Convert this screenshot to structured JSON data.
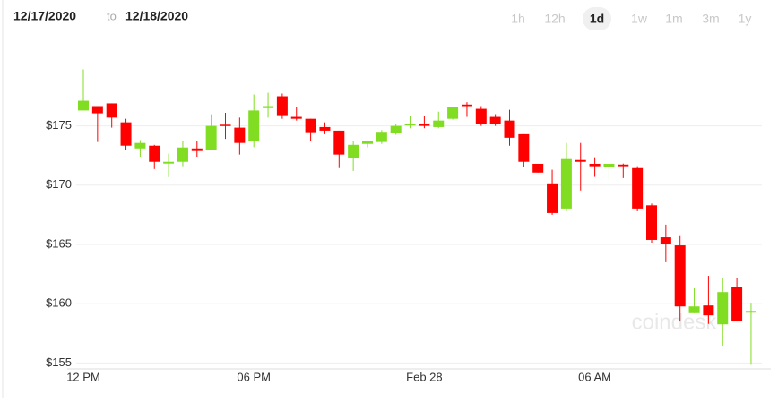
{
  "date_range": {
    "from": "12/17/2020",
    "separator": "to",
    "to": "12/18/2020"
  },
  "timeframes": [
    "1h",
    "12h",
    "1d",
    "1w",
    "1m",
    "3m",
    "1y"
  ],
  "selected_timeframe": 2,
  "watermark": "coindesk",
  "chart_data": {
    "type": "candlestick",
    "categories": [
      "12 PM",
      null,
      null,
      null,
      null,
      null,
      null,
      null,
      null,
      null,
      null,
      null,
      "06 PM",
      null,
      null,
      null,
      null,
      null,
      null,
      null,
      null,
      null,
      null,
      null,
      "Feb 28",
      null,
      null,
      null,
      null,
      null,
      null,
      null,
      null,
      null,
      null,
      null,
      "06 AM",
      null,
      null,
      null,
      null,
      null,
      null,
      null,
      null,
      null,
      null,
      null
    ],
    "open": [
      176.3,
      176.67,
      176.9,
      175.3,
      173.1,
      173.33,
      171.82,
      171.97,
      173.1,
      172.95,
      175.1,
      174.85,
      173.7,
      176.5,
      177.5,
      175.76,
      175.6,
      174.9,
      174.6,
      172.27,
      173.48,
      173.64,
      174.4,
      175.08,
      175.2,
      174.9,
      175.6,
      176.8,
      176.44,
      175.76,
      175.45,
      174.3,
      171.8,
      170.15,
      168.03,
      172.12,
      171.8,
      171.5,
      171.74,
      171.44,
      168.3,
      165.6,
      164.92,
      159.2,
      159.85,
      158.26,
      161.44,
      159.24
    ],
    "high": [
      179.77,
      176.67,
      176.9,
      175.6,
      173.8,
      173.4,
      172.65,
      173.7,
      173.7,
      175.98,
      176.1,
      175.7,
      177.65,
      177.8,
      177.73,
      176.6,
      175.6,
      175.3,
      174.6,
      173.7,
      173.7,
      174.65,
      175.15,
      175.8,
      175.8,
      176.2,
      176.6,
      177.0,
      176.67,
      175.99,
      176.36,
      174.3,
      171.8,
      171.3,
      173.56,
      173.56,
      172.35,
      171.8,
      171.82,
      171.6,
      168.45,
      166.67,
      165.7,
      161.3,
      162.35,
      162.2,
      162.2,
      160.08
    ],
    "low": [
      176.29,
      173.64,
      174.85,
      172.95,
      172.4,
      171.36,
      170.68,
      171.6,
      172.4,
      172.95,
      173.9,
      172.58,
      173.2,
      175.7,
      175.6,
      175.45,
      173.7,
      174.3,
      171.44,
      171.2,
      173.2,
      173.48,
      174.25,
      174.8,
      174.8,
      174.8,
      175.53,
      175.76,
      175.0,
      175.0,
      173.33,
      171.52,
      171.06,
      167.5,
      167.8,
      169.55,
      170.7,
      170.37,
      170.6,
      167.8,
      165.15,
      163.5,
      158.5,
      159.2,
      158.3,
      156.4,
      158.5,
      154.85
    ],
    "close": [
      177.12,
      176.06,
      175.7,
      173.33,
      173.56,
      171.97,
      171.97,
      173.18,
      172.88,
      175.0,
      175.0,
      173.56,
      176.3,
      176.67,
      175.83,
      175.6,
      174.47,
      174.6,
      172.58,
      173.4,
      173.7,
      174.5,
      175.0,
      175.15,
      175.0,
      175.45,
      176.6,
      176.67,
      175.15,
      175.15,
      174.0,
      171.97,
      171.06,
      167.65,
      172.2,
      171.97,
      171.6,
      171.8,
      171.6,
      168.03,
      165.38,
      165.0,
      159.77,
      159.77,
      159.02,
      160.98,
      158.5,
      159.39
    ],
    "up_color": "#80dd22",
    "down_color": "#ff0000",
    "ylim": [
      154.5,
      182.6
    ],
    "yticks": [
      {
        "value": 155,
        "label": "$155"
      },
      {
        "value": 160,
        "label": "$160"
      },
      {
        "value": 165,
        "label": "$165"
      },
      {
        "value": 170,
        "label": "$170"
      },
      {
        "value": 175,
        "label": "$175"
      }
    ],
    "grid": true
  }
}
